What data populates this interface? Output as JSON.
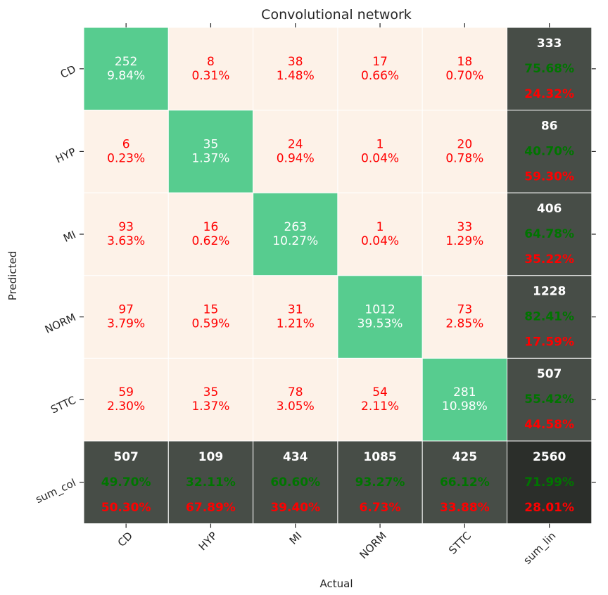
{
  "chart_data": {
    "type": "heatmap",
    "title": "Convolutional network",
    "xlabel": "Actual",
    "ylabel": "Predicted",
    "x_tick_labels": [
      "CD",
      "HYP",
      "MI",
      "NORM",
      "STTC",
      "sum_lin"
    ],
    "y_tick_labels": [
      "CD",
      "HYP",
      "MI",
      "NORM",
      "STTC",
      "sum_col"
    ],
    "colors": {
      "diagonal": "#57cc8f",
      "off_diagonal": "#fdf2e8",
      "summary": "#474d47",
      "total": "#2b2e2a",
      "text_red": "#ff0000",
      "text_white": "#ffffff",
      "text_green": "#007500"
    },
    "matrix": [
      [
        252,
        8,
        38,
        17,
        18
      ],
      [
        6,
        35,
        24,
        1,
        20
      ],
      [
        93,
        16,
        263,
        1,
        33
      ],
      [
        97,
        15,
        31,
        1012,
        73
      ],
      [
        59,
        35,
        78,
        54,
        281
      ]
    ],
    "cell_percent": [
      [
        "9.84%",
        "0.31%",
        "1.48%",
        "0.66%",
        "0.70%"
      ],
      [
        "0.23%",
        "1.37%",
        "0.94%",
        "0.04%",
        "0.78%"
      ],
      [
        "3.63%",
        "0.62%",
        "10.27%",
        "0.04%",
        "1.29%"
      ],
      [
        "3.79%",
        "0.59%",
        "1.21%",
        "39.53%",
        "2.85%"
      ],
      [
        "2.30%",
        "1.37%",
        "3.05%",
        "2.11%",
        "10.98%"
      ]
    ],
    "row_sums": [
      {
        "count": "333",
        "correct": "75.68%",
        "wrong": "24.32%"
      },
      {
        "count": "86",
        "correct": "40.70%",
        "wrong": "59.30%"
      },
      {
        "count": "406",
        "correct": "64.78%",
        "wrong": "35.22%"
      },
      {
        "count": "1228",
        "correct": "82.41%",
        "wrong": "17.59%"
      },
      {
        "count": "507",
        "correct": "55.42%",
        "wrong": "44.58%"
      }
    ],
    "col_sums": [
      {
        "count": "507",
        "correct": "49.70%",
        "wrong": "50.30%"
      },
      {
        "count": "109",
        "correct": "32.11%",
        "wrong": "67.89%"
      },
      {
        "count": "434",
        "correct": "60.60%",
        "wrong": "39.40%"
      },
      {
        "count": "1085",
        "correct": "93.27%",
        "wrong": "6.73%"
      },
      {
        "count": "425",
        "correct": "66.12%",
        "wrong": "33.88%"
      }
    ],
    "total": {
      "count": "2560",
      "correct": "71.99%",
      "wrong": "28.01%"
    }
  }
}
